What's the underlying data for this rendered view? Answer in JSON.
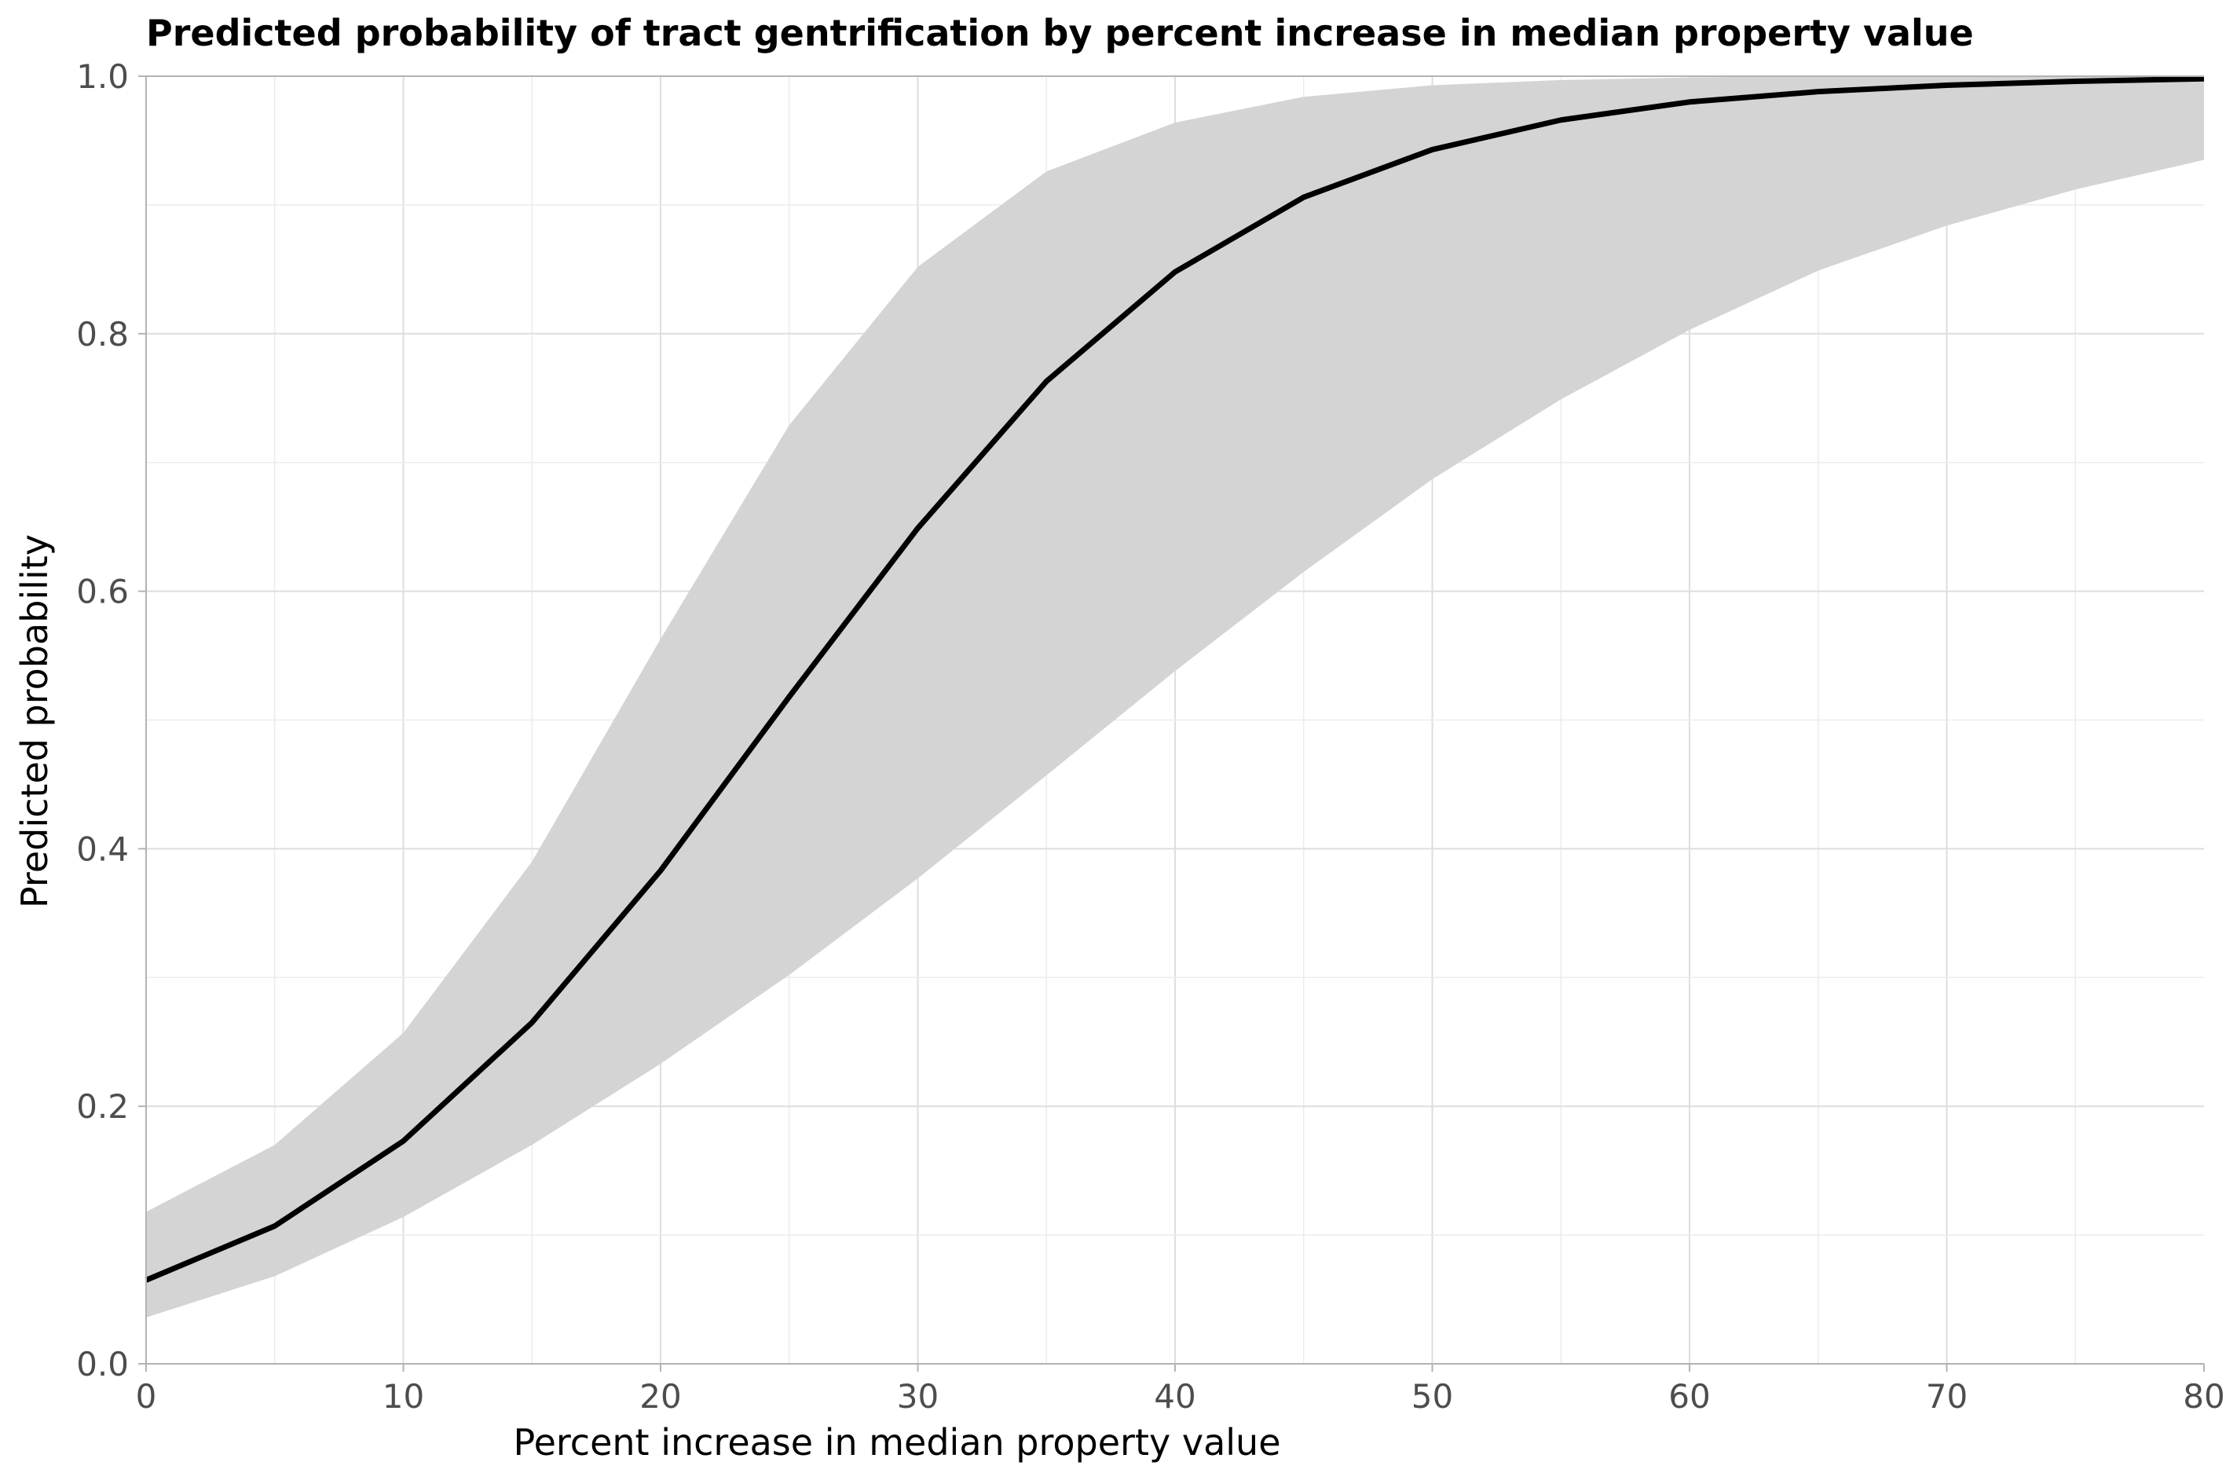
{
  "chart_data": {
    "type": "area",
    "title": "Predicted probability of tract gentrification by percent increase in median property value",
    "xlabel": "Percent increase in median property value",
    "ylabel": "Predicted probability",
    "xlim": [
      0,
      80
    ],
    "ylim": [
      0,
      1
    ],
    "x_ticks": [
      0,
      10,
      20,
      30,
      40,
      50,
      60,
      70,
      80
    ],
    "x_tick_labels": [
      "0",
      "10",
      "20",
      "30",
      "40",
      "50",
      "60",
      "70",
      "80"
    ],
    "y_ticks": [
      0,
      0.2,
      0.4,
      0.6,
      0.8,
      1.0
    ],
    "y_tick_labels": [
      "0.0",
      "0.2",
      "0.4",
      "0.6",
      "0.8",
      "1.0"
    ],
    "grid": true,
    "legend": "none",
    "x": [
      0,
      5,
      10,
      15,
      20,
      25,
      30,
      35,
      40,
      45,
      50,
      55,
      60,
      65,
      70,
      75,
      80
    ],
    "series": [
      {
        "values": [
          0.065,
          0.107,
          0.173,
          0.265,
          0.383,
          0.518,
          0.649,
          0.763,
          0.848,
          0.906,
          0.943,
          0.966,
          0.98,
          0.988,
          0.993,
          0.996,
          0.998
        ],
        "lower": [
          0.036,
          0.068,
          0.114,
          0.17,
          0.233,
          0.302,
          0.377,
          0.457,
          0.538,
          0.615,
          0.687,
          0.749,
          0.803,
          0.849,
          0.884,
          0.912,
          0.935
        ],
        "upper": [
          0.118,
          0.17,
          0.257,
          0.39,
          0.563,
          0.729,
          0.852,
          0.926,
          0.964,
          0.984,
          0.993,
          0.997,
          0.999,
          1.0,
          1.0,
          1.0,
          1.0
        ],
        "color": "#000000",
        "band_color": "#d4d4d4"
      }
    ]
  }
}
